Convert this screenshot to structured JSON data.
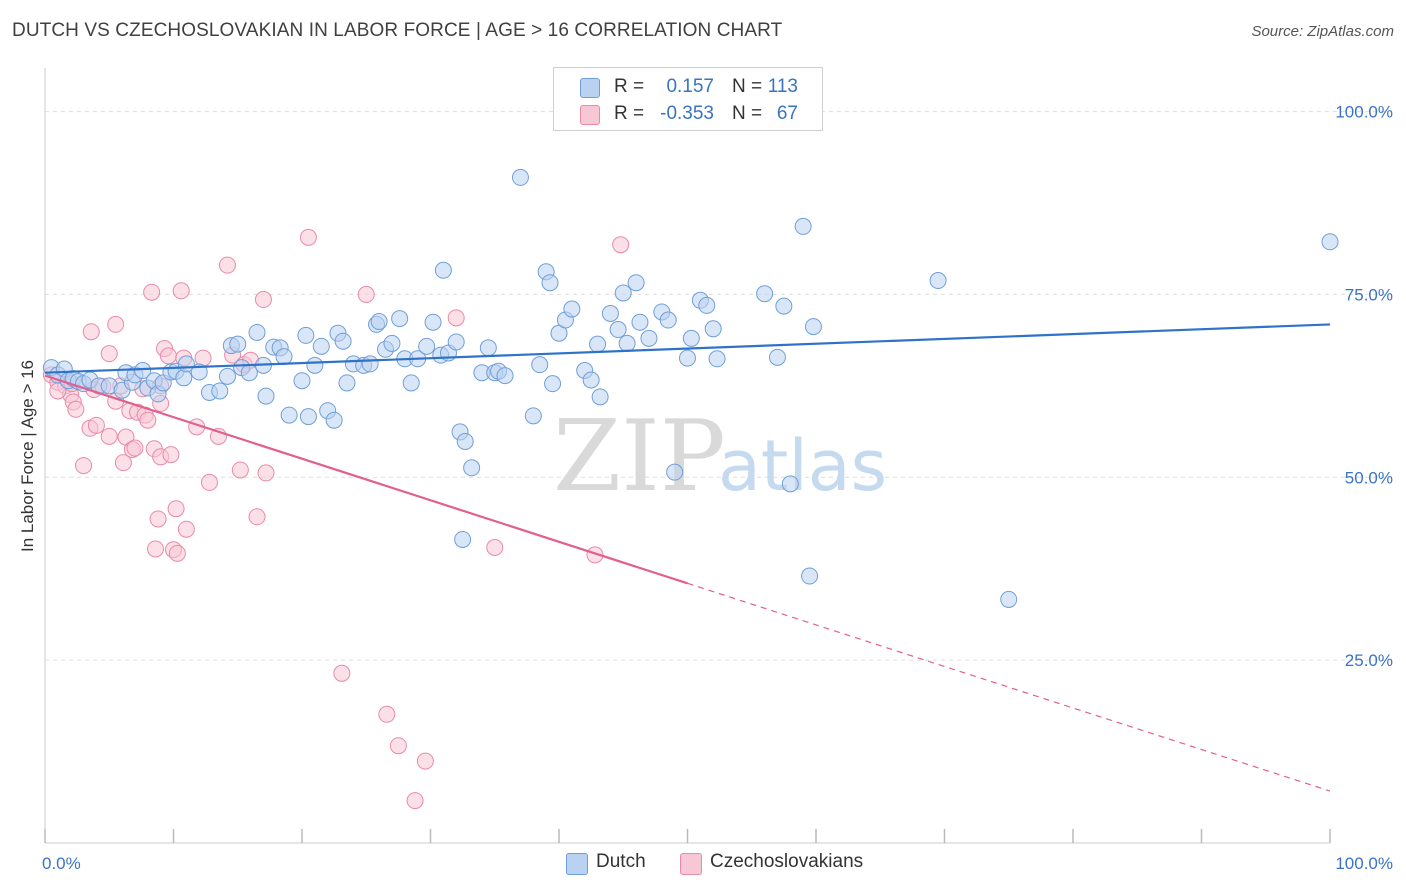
{
  "title": "DUTCH VS CZECHOSLOVAKIAN IN LABOR FORCE | AGE > 16 CORRELATION CHART",
  "source": "Source: ZipAtlas.com",
  "watermark": {
    "zip": "ZIP",
    "atlas": "atlas"
  },
  "legend": {
    "series": [
      {
        "r_label": "R =",
        "r_value": "0.157",
        "n_label": "N =",
        "n_value": "113"
      },
      {
        "r_label": "R =",
        "r_value": "-0.353",
        "n_label": "N =",
        "n_value": "67"
      }
    ]
  },
  "colors": {
    "dutch_fill": "#b9d2f1",
    "dutch_stroke": "#6f9fd8",
    "dutch_line": "#2f73c8",
    "czech_fill": "#f8c7d6",
    "czech_stroke": "#e98aa9",
    "czech_line": "#e2608e",
    "value_text": "#3a73c4",
    "grid": "#dddddd"
  },
  "chart_data": {
    "type": "scatter",
    "title": "DUTCH VS CZECHOSLOVAKIAN IN LABOR FORCE | AGE > 16 CORRELATION CHART",
    "xlabel": "",
    "ylabel": "In Labor Force | Age > 16",
    "xlim": [
      0,
      100
    ],
    "ylim": [
      0,
      105
    ],
    "x_tick_labels": [
      "0.0%",
      "100.0%"
    ],
    "y_ticks": [
      25,
      50,
      75,
      100
    ],
    "y_tick_labels": [
      "25.0%",
      "50.0%",
      "75.0%",
      "100.0%"
    ],
    "grid": true,
    "legend_position": "top-center",
    "series": [
      {
        "name": "Dutch",
        "r": 0.157,
        "n": 113,
        "trend": {
          "x": [
            0,
            100
          ],
          "y": [
            64.3,
            70.9
          ],
          "dashed_from": null
        },
        "points": [
          [
            0.5,
            65
          ],
          [
            1,
            64
          ],
          [
            1.5,
            64.8
          ],
          [
            1.8,
            63.2
          ],
          [
            2.2,
            63.5
          ],
          [
            2.6,
            63.1
          ],
          [
            3,
            62.8
          ],
          [
            3.5,
            63.3
          ],
          [
            4.2,
            62.5
          ],
          [
            5,
            62.5
          ],
          [
            6,
            61.9
          ],
          [
            6.8,
            63
          ],
          [
            6.3,
            64.3
          ],
          [
            7,
            64
          ],
          [
            7.6,
            64.6
          ],
          [
            8,
            62.2
          ],
          [
            8.5,
            63.2
          ],
          [
            8.8,
            61.4
          ],
          [
            9.2,
            62.9
          ],
          [
            9.8,
            64.4
          ],
          [
            10.2,
            64.5
          ],
          [
            10.8,
            63.6
          ],
          [
            11,
            65.5
          ],
          [
            12,
            64.4
          ],
          [
            12.8,
            61.6
          ],
          [
            13.6,
            61.8
          ],
          [
            14.2,
            63.8
          ],
          [
            14.5,
            68
          ],
          [
            15,
            68.2
          ],
          [
            15.3,
            65
          ],
          [
            15.9,
            64.3
          ],
          [
            16.5,
            69.8
          ],
          [
            17,
            65.3
          ],
          [
            17.2,
            61.1
          ],
          [
            17.8,
            67.8
          ],
          [
            18.3,
            67.7
          ],
          [
            18.6,
            66.5
          ],
          [
            19,
            58.5
          ],
          [
            20,
            63.2
          ],
          [
            20.3,
            69.4
          ],
          [
            20.5,
            58.3
          ],
          [
            21,
            65.3
          ],
          [
            21.5,
            67.9
          ],
          [
            22,
            59.1
          ],
          [
            22.5,
            57.8
          ],
          [
            22.8,
            69.7
          ],
          [
            23.2,
            68.6
          ],
          [
            23.5,
            62.9
          ],
          [
            24,
            65.5
          ],
          [
            24.8,
            65.3
          ],
          [
            25.3,
            65.5
          ],
          [
            25.8,
            70.9
          ],
          [
            26,
            71.3
          ],
          [
            26.5,
            67.5
          ],
          [
            27,
            68.3
          ],
          [
            27.6,
            71.7
          ],
          [
            28,
            66.2
          ],
          [
            28.5,
            62.9
          ],
          [
            29,
            66.2
          ],
          [
            29.7,
            67.9
          ],
          [
            30.2,
            71.2
          ],
          [
            30.8,
            66.7
          ],
          [
            31,
            78.3
          ],
          [
            31.4,
            67
          ],
          [
            32,
            68.5
          ],
          [
            32.3,
            56.2
          ],
          [
            32.7,
            54.9
          ],
          [
            33.2,
            51.3
          ],
          [
            34,
            64.3
          ],
          [
            34.5,
            67.7
          ],
          [
            35,
            64.3
          ],
          [
            35.3,
            64.5
          ],
          [
            35.8,
            63.9
          ],
          [
            37,
            91
          ],
          [
            38,
            58.4
          ],
          [
            38.5,
            65.4
          ],
          [
            39,
            78.1
          ],
          [
            39.3,
            76.6
          ],
          [
            39.5,
            62.8
          ],
          [
            40,
            69.7
          ],
          [
            40.5,
            71.5
          ],
          [
            41,
            73
          ],
          [
            42,
            64.6
          ],
          [
            42.5,
            63.3
          ],
          [
            43,
            68.2
          ],
          [
            43.2,
            61
          ],
          [
            44,
            72.4
          ],
          [
            44.6,
            70.2
          ],
          [
            45,
            75.2
          ],
          [
            45.3,
            68.3
          ],
          [
            46,
            76.6
          ],
          [
            46.3,
            71.2
          ],
          [
            47,
            69
          ],
          [
            48,
            72.6
          ],
          [
            48.5,
            71.5
          ],
          [
            49,
            50.7
          ],
          [
            50,
            66.3
          ],
          [
            50.3,
            69
          ],
          [
            51,
            74.2
          ],
          [
            51.5,
            73.5
          ],
          [
            52,
            70.3
          ],
          [
            52.3,
            66.2
          ],
          [
            56,
            75.1
          ],
          [
            57,
            66.4
          ],
          [
            57.5,
            73.4
          ],
          [
            58,
            49.1
          ],
          [
            59,
            84.3
          ],
          [
            59.5,
            36.5
          ],
          [
            59.8,
            70.6
          ],
          [
            69.5,
            76.9
          ],
          [
            75,
            33.3
          ],
          [
            100,
            82.2
          ],
          [
            32.5,
            41.5
          ]
        ]
      },
      {
        "name": "Czechoslovakians",
        "r": -0.353,
        "n": 67,
        "trend": {
          "x": [
            0,
            100
          ],
          "y": [
            63.9,
            7.1
          ],
          "dashed_from": 50
        },
        "points": [
          [
            0.5,
            64
          ],
          [
            1,
            63
          ],
          [
            1.6,
            62.5
          ],
          [
            2,
            61.3
          ],
          [
            2.2,
            60.3
          ],
          [
            2.4,
            59.3
          ],
          [
            3,
            51.6
          ],
          [
            3.5,
            56.7
          ],
          [
            3.8,
            62
          ],
          [
            3.6,
            69.9
          ],
          [
            4,
            57.1
          ],
          [
            4.5,
            62.4
          ],
          [
            5,
            55.6
          ],
          [
            5,
            66.9
          ],
          [
            5.5,
            60.4
          ],
          [
            5.5,
            70.9
          ],
          [
            5.9,
            62.5
          ],
          [
            6.1,
            52
          ],
          [
            6.3,
            55.5
          ],
          [
            6.6,
            59.1
          ],
          [
            6.8,
            53.8
          ],
          [
            7,
            54
          ],
          [
            7.2,
            58.9
          ],
          [
            7.6,
            62.1
          ],
          [
            7.8,
            58.5
          ],
          [
            8,
            57.8
          ],
          [
            8.3,
            75.3
          ],
          [
            8.5,
            53.9
          ],
          [
            8.6,
            40.2
          ],
          [
            8.8,
            44.3
          ],
          [
            9,
            52.8
          ],
          [
            9,
            60.1
          ],
          [
            9,
            62.5
          ],
          [
            9.3,
            67.6
          ],
          [
            9.6,
            66.6
          ],
          [
            9.8,
            53.1
          ],
          [
            10,
            40.1
          ],
          [
            10.2,
            45.7
          ],
          [
            10.3,
            39.6
          ],
          [
            10.6,
            75.5
          ],
          [
            10.8,
            66.3
          ],
          [
            11,
            42.9
          ],
          [
            11.8,
            56.9
          ],
          [
            12.3,
            66.3
          ],
          [
            12.8,
            49.3
          ],
          [
            13.5,
            55.6
          ],
          [
            14.2,
            79
          ],
          [
            14.6,
            66.7
          ],
          [
            15.2,
            51
          ],
          [
            15.5,
            65.4
          ],
          [
            16,
            66
          ],
          [
            16.5,
            44.6
          ],
          [
            17,
            74.3
          ],
          [
            17.2,
            50.6
          ],
          [
            20.5,
            82.8
          ],
          [
            23.1,
            23.2
          ],
          [
            25,
            75
          ],
          [
            26.6,
            17.6
          ],
          [
            27.5,
            13.3
          ],
          [
            28.8,
            5.8
          ],
          [
            29.6,
            11.2
          ],
          [
            32,
            71.8
          ],
          [
            35,
            40.4
          ],
          [
            42.8,
            39.4
          ],
          [
            44.8,
            81.8
          ],
          [
            2.1,
            62.8
          ],
          [
            1,
            61.8
          ]
        ]
      }
    ]
  }
}
